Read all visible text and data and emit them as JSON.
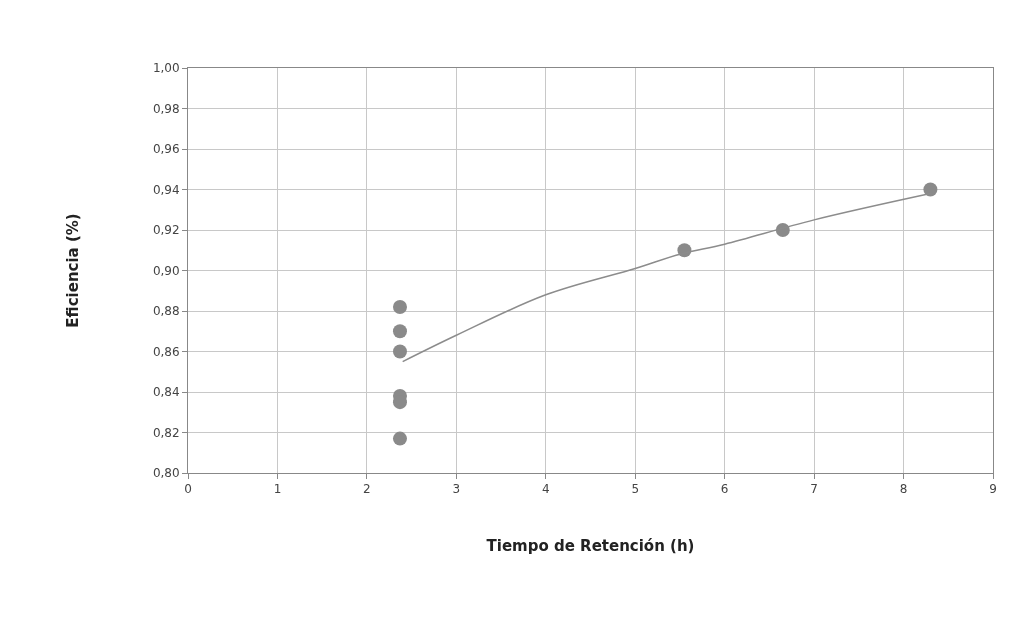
{
  "chart_data": {
    "type": "scatter",
    "xlabel": "Tiempo de Retención (h)",
    "ylabel": "Eficiencia (%)",
    "series": [
      {
        "color": "#8a8a8a",
        "marker": "circle",
        "x": [
          2.37,
          2.37,
          2.37,
          2.37,
          2.37,
          2.37,
          5.55,
          6.65,
          8.3
        ],
        "values": [
          0.882,
          0.87,
          0.86,
          0.838,
          0.835,
          0.817,
          0.91,
          0.92,
          0.94
        ]
      },
      {
        "type": "line",
        "color": "#8c8c8c",
        "x": [
          2.4,
          3,
          4,
          5,
          5.5,
          6,
          7,
          8.3
        ],
        "values": [
          0.855,
          0.868,
          0.888,
          0.901,
          0.908,
          0.913,
          0.925,
          0.938
        ]
      }
    ],
    "xlim": [
      0,
      9
    ],
    "xticks": [
      0,
      1,
      2,
      3,
      4,
      5,
      6,
      7,
      8,
      9
    ],
    "ylim": [
      0.8,
      1.0
    ],
    "yticks": [
      {
        "value": 0.8,
        "label": "0,80"
      },
      {
        "value": 0.82,
        "label": "0,82"
      },
      {
        "value": 0.84,
        "label": "0,84"
      },
      {
        "value": 0.86,
        "label": "0,86"
      },
      {
        "value": 0.88,
        "label": "0,88"
      },
      {
        "value": 0.9,
        "label": "0,90"
      },
      {
        "value": 0.92,
        "label": "0,92"
      },
      {
        "value": 0.94,
        "label": "0,94"
      },
      {
        "value": 0.96,
        "label": "0,96"
      },
      {
        "value": 0.98,
        "label": "0,98"
      },
      {
        "value": 1.0,
        "label": "1,00"
      }
    ],
    "grid": true
  }
}
